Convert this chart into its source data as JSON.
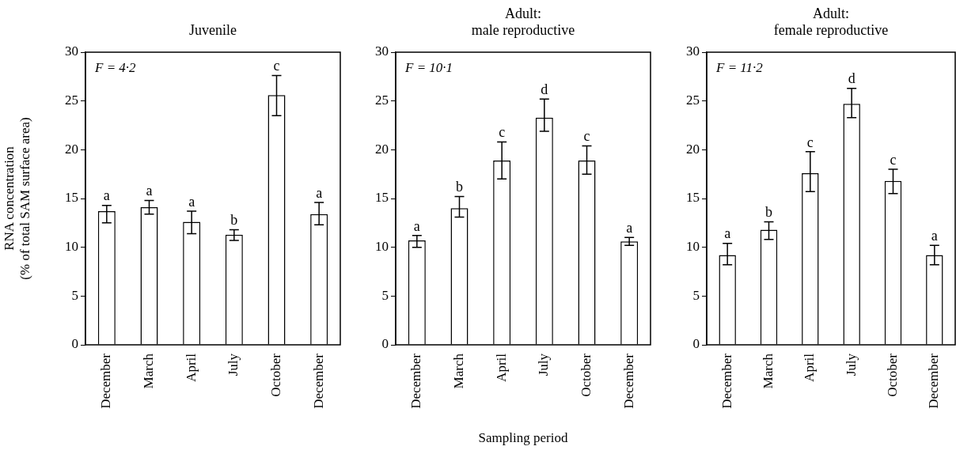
{
  "chart_data": [
    {
      "type": "bar",
      "title": "Juvenile",
      "ylabel": "RNA concentration\n(% of total SAM surface area)",
      "categories": [
        "December",
        "March",
        "April",
        "July",
        "October",
        "December"
      ],
      "ylim": [
        0,
        30
      ],
      "yticks": [
        0,
        5,
        10,
        15,
        20,
        25,
        30
      ],
      "annotations": [
        "F = 4·2"
      ],
      "series": [
        {
          "color": "#ffffff",
          "values": [
            13.7,
            14.1,
            12.6,
            11.3,
            25.6,
            13.4
          ],
          "errors": [
            [
              12.5,
              14.3
            ],
            [
              13.4,
              14.8
            ],
            [
              11.4,
              13.7
            ],
            [
              10.7,
              11.8
            ],
            [
              23.5,
              27.6
            ],
            [
              12.3,
              14.6
            ]
          ],
          "value_labels": [
            "a",
            "a",
            "a",
            "b",
            "c",
            "a"
          ]
        }
      ]
    },
    {
      "type": "bar",
      "title": "Adult:\nmale reproductive",
      "xlabel": "Sampling period",
      "categories": [
        "December",
        "March",
        "April",
        "July",
        "October",
        "December"
      ],
      "ylim": [
        0,
        30
      ],
      "yticks": [
        0,
        5,
        10,
        15,
        20,
        25,
        30
      ],
      "annotations": [
        "F = 10·1"
      ],
      "series": [
        {
          "color": "#ffffff",
          "values": [
            10.7,
            14.0,
            18.9,
            23.3,
            18.9,
            10.6
          ],
          "errors": [
            [
              10.0,
              11.2
            ],
            [
              13.1,
              15.2
            ],
            [
              17.0,
              20.8
            ],
            [
              21.9,
              25.2
            ],
            [
              17.5,
              20.4
            ],
            [
              10.2,
              11.0
            ]
          ],
          "value_labels": [
            "a",
            "b",
            "c",
            "d",
            "c",
            "a"
          ]
        }
      ]
    },
    {
      "type": "bar",
      "title": "Adult:\nfemale reproductive",
      "categories": [
        "December",
        "March",
        "April",
        "July",
        "October",
        "December"
      ],
      "ylim": [
        0,
        30
      ],
      "yticks": [
        0,
        5,
        10,
        15,
        20,
        25,
        30
      ],
      "annotations": [
        "F = 11·2"
      ],
      "series": [
        {
          "color": "#ffffff",
          "values": [
            9.2,
            11.8,
            17.6,
            24.7,
            16.8,
            9.2
          ],
          "errors": [
            [
              8.2,
              10.4
            ],
            [
              10.8,
              12.6
            ],
            [
              15.7,
              19.8
            ],
            [
              23.3,
              26.3
            ],
            [
              15.5,
              18.0
            ],
            [
              8.2,
              10.2
            ]
          ],
          "value_labels": [
            "a",
            "b",
            "c",
            "d",
            "c",
            "a"
          ]
        }
      ]
    }
  ]
}
